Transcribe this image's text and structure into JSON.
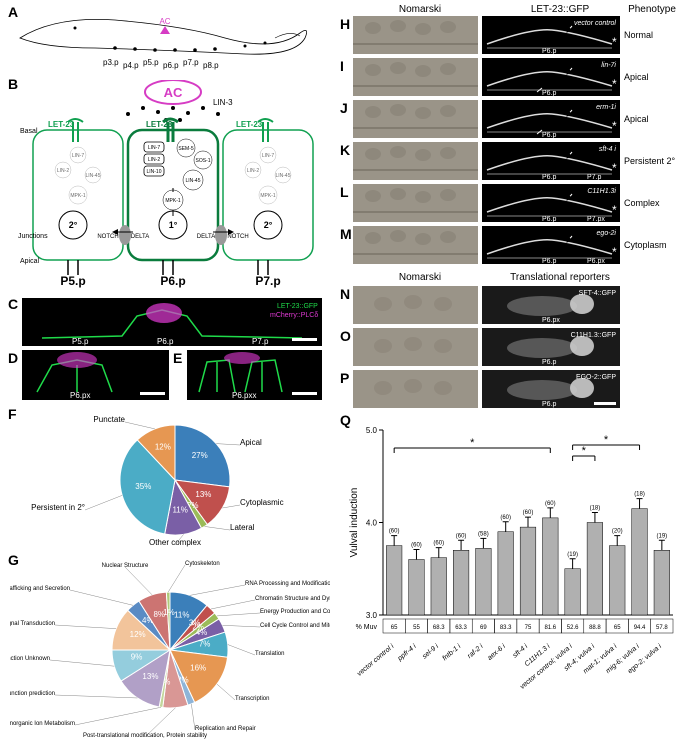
{
  "panels": {
    "A": "A",
    "B": "B",
    "C": "C",
    "D": "D",
    "E": "E",
    "F": "F",
    "G": "G",
    "H": "H",
    "I": "I",
    "J": "J",
    "K": "K",
    "L": "L",
    "M": "M",
    "N": "N",
    "O": "O",
    "P": "P",
    "Q": "Q"
  },
  "wormA": {
    "ac_label": "AC",
    "pcells": [
      "p3.p",
      "p4.p",
      "p5.p",
      "p6.p",
      "p7.p",
      "p8.p"
    ],
    "ac_color": "#d63cc4"
  },
  "diagramB": {
    "ac_label": "AC",
    "lin3": "LIN-3",
    "let23": "LET-23",
    "basal": "Basal",
    "apical": "Apical",
    "junctions": "Junctions",
    "cells": {
      "p5": "P5.p",
      "p6": "P6.p",
      "p7": "P7.p"
    },
    "fates": {
      "primary": "1°",
      "secondary": "2°"
    },
    "notch": "NOTCH",
    "delta": "DELTA",
    "nodes": {
      "lin2": "LIN-2",
      "lin7": "LIN-7",
      "lin10": "LIN-10",
      "lin45": "LIN-45",
      "mpk1": "MPK-1",
      "sos1": "SOS-1",
      "sem5": "SEM-5"
    },
    "colors": {
      "ac": "#d63cc4",
      "receptor": "#10a050",
      "cell_outline": "#10a050",
      "primary_cell": "#0a7c3d"
    }
  },
  "microCDE": {
    "let23": "LET-23::GFP",
    "plcd": "mCherry::PLCδ",
    "p5": "P5.p",
    "p6": "P6.p",
    "p7": "P7.p",
    "p6px": "P6.px",
    "p6pxx": "P6.pxx",
    "colors": {
      "green": "#1fdb4a",
      "magenta": "#e23ad6",
      "bg": "#000000"
    }
  },
  "pieF": {
    "type": "pie",
    "title_labels": {
      "apical": "Apical",
      "cytoplasmic": "Cytoplasmic",
      "lateral": "Lateral",
      "other": "Other complex",
      "persistent": "Persistent in 2°",
      "punctate": "Punctate"
    },
    "slices": [
      {
        "label": "Apical",
        "value": 27,
        "color": "#3b7fba",
        "text": "27%"
      },
      {
        "label": "Cytoplasmic",
        "value": 13,
        "color": "#c0504d",
        "text": "13%"
      },
      {
        "label": "Lateral",
        "value": 2,
        "color": "#9bbb59",
        "text": "2%"
      },
      {
        "label": "Other complex",
        "value": 11,
        "color": "#7a5fa6",
        "text": "11%"
      },
      {
        "label": "Persistent in 2°",
        "value": 35,
        "color": "#4bacc6",
        "text": "35%"
      },
      {
        "label": "Punctate",
        "value": 12,
        "color": "#e69752",
        "text": "12%"
      }
    ]
  },
  "pieG": {
    "type": "pie",
    "slices": [
      {
        "label": "RNA Processing and Modification",
        "value": 11,
        "color": "#3b7fba",
        "text": "11%"
      },
      {
        "label": "Chromatin Structure and Dynamics",
        "value": 3,
        "color": "#c0504d",
        "text": "3%"
      },
      {
        "label": "Energy Production and Conversion",
        "value": 2,
        "color": "#9bbb59",
        "text": "2%"
      },
      {
        "label": "Cell Cycle Control and Mitosis",
        "value": 4,
        "color": "#7a5fa6",
        "text": "4%"
      },
      {
        "label": "Translation",
        "value": 7,
        "color": "#4bacc6",
        "text": "7%"
      },
      {
        "label": "Transcription",
        "value": 16,
        "color": "#e69752",
        "text": "16%"
      },
      {
        "label": "Replication and Repair",
        "value": 2,
        "color": "#8eb4d8",
        "text": "2%"
      },
      {
        "label": "Post-translational modification, Protein stability",
        "value": 7,
        "color": "#d99795",
        "text": ""
      },
      {
        "label": "Inorganic Ion Metabolism",
        "value": 1,
        "color": "#c2d69b",
        "text": "1%"
      },
      {
        "label": "General function prediction",
        "value": 13,
        "color": "#b1a0c7",
        "text": "13%"
      },
      {
        "label": "Function Unknown",
        "value": 9,
        "color": "#94cddd",
        "text": "9%"
      },
      {
        "label": "Signal Transduction",
        "value": 12,
        "color": "#f2c49b",
        "text": "12%"
      },
      {
        "label": "Trafficking and Secretion",
        "value": 4,
        "color": "#5a8bc4",
        "text": "4%"
      },
      {
        "label": "Nuclear Structure",
        "value": 8,
        "color": "#cc7472",
        "text": "8%"
      },
      {
        "label": "Cytoskeleton",
        "value": 1,
        "color": "#afc97a",
        "text": "1%"
      }
    ]
  },
  "colHeaders": {
    "nomarski": "Nomarski",
    "let23": "LET-23::GFP",
    "phenotype": "Phenotype",
    "trans": "Translational reporters"
  },
  "rowsHM": [
    {
      "id": "H",
      "treat": "vector control",
      "cell": "P6.p",
      "pheno": "Normal"
    },
    {
      "id": "I",
      "treat": "lin-7i",
      "cell": "P6.p",
      "pheno": "Apical"
    },
    {
      "id": "J",
      "treat": "erm-1i",
      "cell": "P6.p",
      "pheno": "Apical"
    },
    {
      "id": "K",
      "treat": "sft-4 i",
      "cell": "P6.p",
      "cell2": "P7.p",
      "pheno": "Persistent 2°"
    },
    {
      "id": "L",
      "treat": "C11H1.3i",
      "cell": "P6.p",
      "cell2": "P7.px",
      "pheno": "Complex"
    },
    {
      "id": "M",
      "treat": "ego-2i",
      "cell": "P6.p",
      "cell2": "P6.px",
      "pheno": "Cytoplasm"
    }
  ],
  "rowsNP": [
    {
      "id": "N",
      "reporter": "SFT-4::GFP",
      "cell": "P6.px"
    },
    {
      "id": "O",
      "reporter": "C11H1.3::GFP",
      "cell": "P6.p"
    },
    {
      "id": "P",
      "reporter": "EGO-2::GFP",
      "cell": "P6.p"
    }
  ],
  "chartQ": {
    "type": "bar",
    "ylabel": "Vulval induction",
    "ylim": [
      3.0,
      5.0
    ],
    "yticks": [
      3.0,
      4.0,
      5.0
    ],
    "muv_label": "% Muv",
    "bars": [
      {
        "label": "vector control i",
        "value": 3.75,
        "n": 60,
        "muv": 65
      },
      {
        "label": "ppfr-4 i",
        "value": 3.6,
        "n": 60,
        "muv": 55
      },
      {
        "label": "sel-9 i",
        "value": 3.62,
        "n": 60,
        "muv": 68.3
      },
      {
        "label": "fntb-1 i",
        "value": 3.7,
        "n": 60,
        "muv": 63.3
      },
      {
        "label": "raf-2 i",
        "value": 3.72,
        "n": 58,
        "muv": 69
      },
      {
        "label": "aex-6 i",
        "value": 3.9,
        "n": 60,
        "muv": 83.3
      },
      {
        "label": "sft-4 i",
        "value": 3.95,
        "n": 60,
        "muv": 75
      },
      {
        "label": "C11H1.3 i",
        "value": 4.05,
        "n": 60,
        "muv": 81.6
      },
      {
        "label": "vector control; vulva i",
        "value": 3.5,
        "n": 19,
        "muv": 52.6
      },
      {
        "label": "sft-4; vulva i",
        "value": 4.0,
        "n": 18,
        "muv": 88.8
      },
      {
        "label": "mat-1; vulva i",
        "value": 3.75,
        "n": 20,
        "muv": 65
      },
      {
        "label": "mig-6; vulva i",
        "value": 4.15,
        "n": 18,
        "muv": 94.4
      },
      {
        "label": "ego-2; vulva i",
        "value": 3.7,
        "n": 19,
        "muv": 57.8
      }
    ],
    "bar_color": "#b0b0b0",
    "error_color": "#000",
    "sig": "*"
  },
  "colors": {
    "bg": "#ffffff",
    "text": "#000000"
  }
}
